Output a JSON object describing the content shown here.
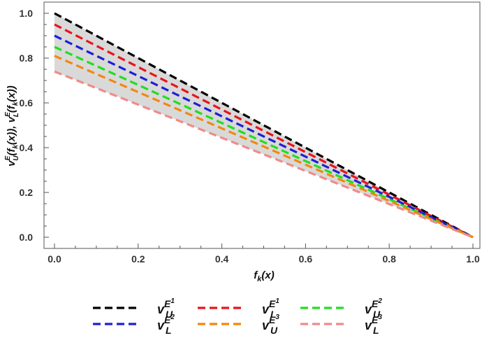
{
  "chart_data": {
    "type": "line",
    "xlabel": "f_k(x)",
    "ylabel": "v_U^E(f_k(x)), v_L^E(f_k(x))",
    "xlim": [
      0.0,
      1.0
    ],
    "ylim": [
      0.0,
      1.0
    ],
    "x_ticks": [
      "0.0",
      "0.2",
      "0.4",
      "0.6",
      "0.8",
      "1.0"
    ],
    "y_ticks": [
      "0.0",
      "0.2",
      "0.4",
      "0.6",
      "0.8",
      "1.0"
    ],
    "grid": false,
    "shaded_band": {
      "between": [
        "v_U^E1",
        "v_L^E3"
      ],
      "color": "#d9d9d9"
    },
    "line_style": "dashed",
    "legend_position": "bottom",
    "series": [
      {
        "name": "v_U^E1",
        "x": [
          0.0,
          1.0
        ],
        "y": [
          1.0,
          0.0
        ],
        "color": "#000000"
      },
      {
        "name": "v_L^E1",
        "x": [
          0.0,
          1.0
        ],
        "y": [
          0.95,
          0.0
        ],
        "color": "#e8141b"
      },
      {
        "name": "v_U^E2",
        "x": [
          0.0,
          1.0
        ],
        "y": [
          0.85,
          0.0
        ],
        "color": "#22dd22"
      },
      {
        "name": "v_L^E2",
        "x": [
          0.0,
          1.0
        ],
        "y": [
          0.9,
          0.0
        ],
        "color": "#1f1fd6"
      },
      {
        "name": "v_U^E3",
        "x": [
          0.0,
          1.0
        ],
        "y": [
          0.81,
          0.0
        ],
        "color": "#f2870f"
      },
      {
        "name": "v_L^E3",
        "x": [
          0.0,
          1.0
        ],
        "y": [
          0.74,
          0.0
        ],
        "color": "#f08a8a"
      }
    ],
    "legend": [
      {
        "base": "v",
        "sub": "U",
        "sup": "E",
        "supsup": "1",
        "color": "#000000"
      },
      {
        "base": "v",
        "sub": "L",
        "sup": "E",
        "supsup": "1",
        "color": "#e8141b"
      },
      {
        "base": "v",
        "sub": "U",
        "sup": "E",
        "supsup": "2",
        "color": "#22dd22"
      },
      {
        "base": "v",
        "sub": "L",
        "sup": "E",
        "supsup": "2",
        "color": "#1f1fd6"
      },
      {
        "base": "v",
        "sub": "U",
        "sup": "E",
        "supsup": "3",
        "color": "#f2870f"
      },
      {
        "base": "v",
        "sub": "L",
        "sup": "E",
        "supsup": "3",
        "color": "#f08a8a"
      }
    ]
  }
}
